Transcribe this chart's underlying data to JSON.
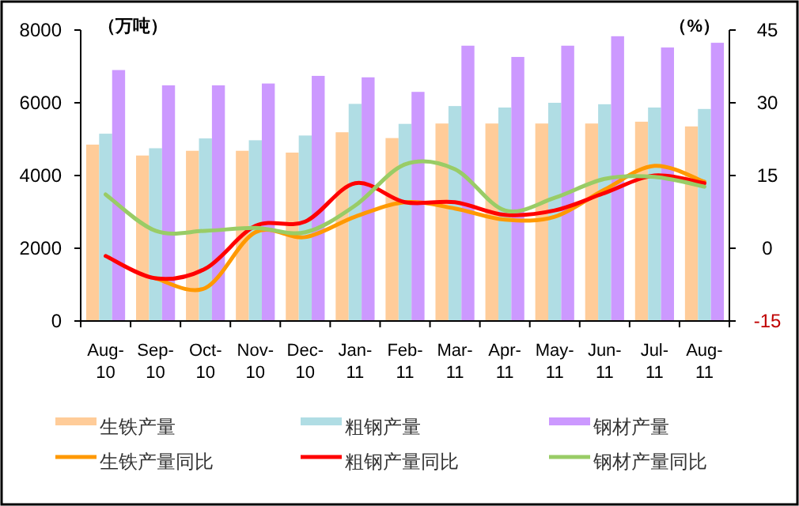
{
  "chart_data": {
    "type": "bar",
    "ylabel": "（万吨）",
    "y2label": "（%）",
    "categories": [
      "Aug-10",
      "Sep-10",
      "Oct-10",
      "Nov-10",
      "Dec-10",
      "Jan-11",
      "Feb-11",
      "Mar-11",
      "Apr-11",
      "May-11",
      "Jun-11",
      "Jul-11",
      "Aug-11"
    ],
    "series": [
      {
        "name": "生铁产量",
        "color": "#ffcc99",
        "values": [
          4850,
          4550,
          4680,
          4680,
          4630,
          5190,
          5030,
          5430,
          5430,
          5430,
          5430,
          5480,
          5350
        ]
      },
      {
        "name": "粗钢产量",
        "color": "#b0dde4",
        "values": [
          5150,
          4750,
          5020,
          4970,
          5100,
          5970,
          5420,
          5910,
          5870,
          6000,
          5960,
          5870,
          5830
        ]
      },
      {
        "name": "钢材产量",
        "color": "#cc99ff",
        "values": [
          6900,
          6480,
          6480,
          6530,
          6740,
          6700,
          6300,
          7570,
          7260,
          7570,
          7830,
          7520,
          7650
        ]
      },
      {
        "name": "生铁产量同比",
        "type": "line",
        "axis": "y2",
        "color": "#ff9900",
        "values": [
          null,
          -6.2,
          -8.2,
          3.3,
          2.3,
          6.5,
          9.5,
          8.2,
          5.9,
          6.5,
          12.1,
          17.0,
          13.7
        ]
      },
      {
        "name": "粗钢产量同比",
        "type": "line",
        "axis": "y2",
        "color": "#ff0000",
        "values": [
          -1.6,
          -6.2,
          -4.2,
          4.6,
          5.5,
          13.4,
          9.5,
          9.5,
          6.9,
          7.8,
          11.4,
          15.0,
          13.4
        ]
      },
      {
        "name": "钢材产量同比",
        "type": "line",
        "axis": "y2",
        "color": "#99cc66",
        "values": [
          11.1,
          3.6,
          3.6,
          4.2,
          3.3,
          8.8,
          17.3,
          16.3,
          7.8,
          10.4,
          14.3,
          14.7,
          12.7
        ]
      }
    ],
    "ylim": [
      0,
      8000
    ],
    "yticks": [
      0,
      2000,
      4000,
      6000,
      8000
    ],
    "y2lim": [
      -15,
      45
    ],
    "y2ticks": [
      -15,
      0,
      15,
      30,
      45
    ],
    "grid": false,
    "legend": "bottom",
    "marker": "none",
    "line_style": "solid"
  }
}
